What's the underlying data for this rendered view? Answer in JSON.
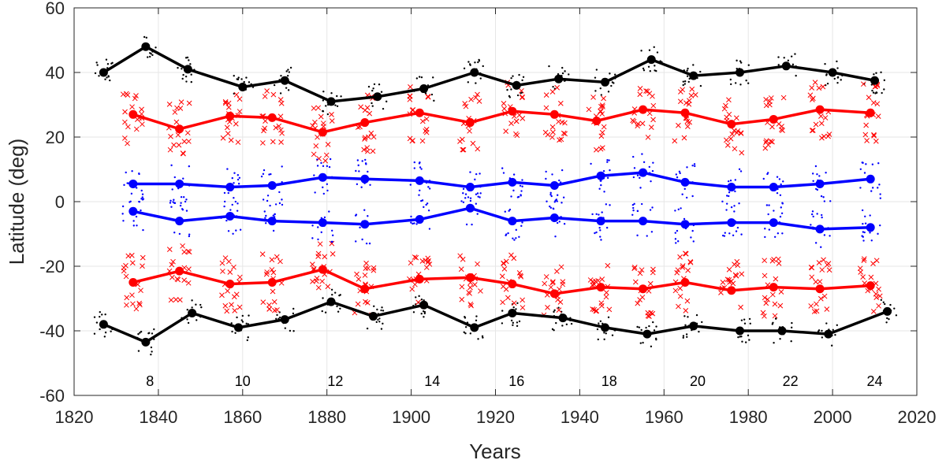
{
  "chart_data": {
    "type": "line",
    "title": "",
    "xlabel": "Years",
    "ylabel": "Latitude (deg)",
    "xlim": [
      1820,
      2020
    ],
    "ylim": [
      -60,
      60
    ],
    "xticks": [
      1820,
      1840,
      1860,
      1880,
      1900,
      1920,
      1940,
      1960,
      1980,
      2000,
      2020
    ],
    "yticks": [
      -60,
      -40,
      -20,
      0,
      20,
      40,
      60
    ],
    "grid": true,
    "cycle_labels": [
      {
        "x": 1838,
        "label": "8"
      },
      {
        "x": 1860,
        "label": "10"
      },
      {
        "x": 1882,
        "label": "12"
      },
      {
        "x": 1905,
        "label": "14"
      },
      {
        "x": 1925,
        "label": "16"
      },
      {
        "x": 1947,
        "label": "18"
      },
      {
        "x": 1968,
        "label": "20"
      },
      {
        "x": 1990,
        "label": "22"
      },
      {
        "x": 2010,
        "label": "24"
      }
    ],
    "series": [
      {
        "color": "#000000",
        "marker": "circle",
        "x": [
          1827,
          1837,
          1847,
          1860,
          1870,
          1881,
          1892,
          1903,
          1915,
          1925,
          1935,
          1946,
          1957,
          1967,
          1978,
          1989,
          2000,
          2010
        ],
        "y": [
          40,
          48,
          41,
          35.5,
          37.5,
          31,
          32.5,
          35,
          40,
          36,
          38,
          37,
          44,
          39,
          40,
          42,
          40,
          37.5
        ]
      },
      {
        "color": "#000000",
        "marker": "circle",
        "x": [
          1827,
          1837,
          1848,
          1859,
          1870,
          1881,
          1891,
          1903,
          1915,
          1924,
          1936,
          1946,
          1956,
          1967,
          1978,
          1988,
          1999,
          2013
        ],
        "y": [
          -38,
          -43.5,
          -34.5,
          -39,
          -36.5,
          -31,
          -35.5,
          -32,
          -39,
          -34.5,
          -36,
          -39,
          -41,
          -38.5,
          -40,
          -40,
          -41,
          -34
        ]
      },
      {
        "color": "#ff0000",
        "marker": "circle",
        "x": [
          1834,
          1845,
          1857,
          1867,
          1879,
          1889,
          1902,
          1914,
          1924,
          1934,
          1944,
          1955,
          1965,
          1976,
          1986,
          1997,
          2009
        ],
        "y": [
          27,
          22.5,
          26.5,
          26,
          21.5,
          24.5,
          27.5,
          24.5,
          28,
          27,
          25,
          28.5,
          27.5,
          24,
          25.5,
          28.5,
          27.5
        ]
      },
      {
        "color": "#ff0000",
        "marker": "circle",
        "x": [
          1834,
          1845,
          1857,
          1867,
          1879,
          1889,
          1902,
          1914,
          1924,
          1934,
          1945,
          1955,
          1965,
          1976,
          1986,
          1997,
          2009
        ],
        "y": [
          -25,
          -21.5,
          -25.5,
          -25,
          -21,
          -27,
          -24,
          -23.5,
          -25.5,
          -28.5,
          -26.5,
          -27,
          -25,
          -27.5,
          -26.5,
          -27,
          -26
        ]
      },
      {
        "color": "#0000ff",
        "marker": "circle",
        "x": [
          1834,
          1845,
          1857,
          1867,
          1879,
          1889,
          1902,
          1914,
          1924,
          1934,
          1945,
          1955,
          1965,
          1976,
          1986,
          1997,
          2009
        ],
        "y": [
          5.5,
          5.5,
          4.5,
          5,
          7.5,
          7,
          6.5,
          4.5,
          6,
          5,
          8,
          9,
          6,
          4.5,
          4.5,
          5.5,
          7
        ]
      },
      {
        "color": "#0000ff",
        "marker": "circle",
        "x": [
          1834,
          1845,
          1857,
          1867,
          1879,
          1889,
          1902,
          1914,
          1924,
          1934,
          1945,
          1955,
          1965,
          1976,
          1986,
          1997,
          2009
        ],
        "y": [
          -3,
          -6,
          -4.5,
          -6,
          -6.5,
          -7,
          -5.5,
          -2,
          -6,
          -5,
          -6,
          -6,
          -7,
          -6.5,
          -6.5,
          -8.5,
          -8
        ]
      }
    ]
  }
}
